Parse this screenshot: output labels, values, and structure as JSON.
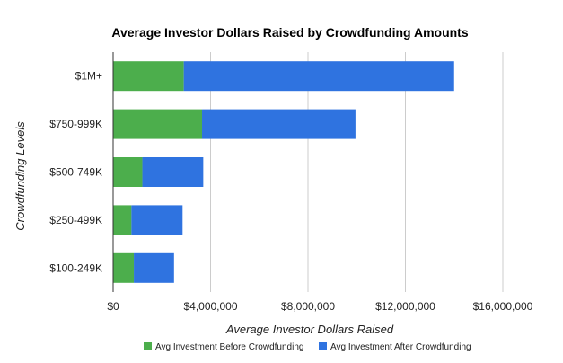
{
  "chart_data": {
    "type": "bar",
    "orientation": "horizontal",
    "stacked": true,
    "title": "Average Investor Dollars Raised by Crowdfunding Amounts",
    "xlabel": "Average Investor Dollars Raised",
    "ylabel": "Crowdfunding Levels",
    "categories": [
      "$1M+",
      "$750-999K",
      "$500-749K",
      "$250-499K",
      "$100-249K"
    ],
    "series": [
      {
        "name": "Avg Investment Before Crowdfunding",
        "color": "#4cae4c",
        "values": [
          2900000,
          3650000,
          1200000,
          750000,
          850000
        ]
      },
      {
        "name": "Avg Investment After Crowdfunding",
        "color": "#2f73e0",
        "values": [
          11100000,
          6300000,
          2500000,
          2100000,
          1650000
        ]
      }
    ],
    "xlim": [
      0,
      16000000
    ],
    "xticks": [
      0,
      4000000,
      8000000,
      12000000,
      16000000
    ],
    "xtick_labels": [
      "$0",
      "$4,000,000",
      "$8,000,000",
      "$12,000,000",
      "$16,000,000"
    ],
    "grid": true,
    "legend": "bottom"
  }
}
